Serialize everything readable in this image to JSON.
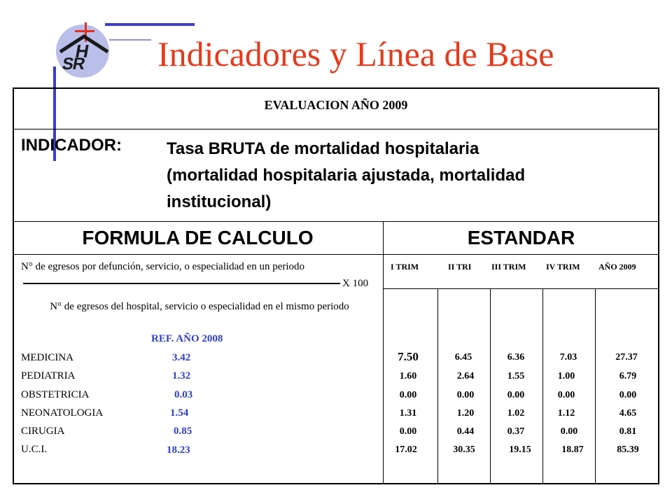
{
  "page": {
    "title": "Indicadores y Línea de Base"
  },
  "logo": {
    "letter_top": "H",
    "letters_bottom": "SR"
  },
  "evaluation": {
    "title": "EVALUACION AÑO 2009"
  },
  "indicator": {
    "label": "INDICADOR:",
    "line1": "Tasa BRUTA de mortalidad hospitalaria",
    "line2": "(mortalidad hospitalaria ajustada, mortalidad",
    "line3": "institucional)"
  },
  "columns": {
    "formula": "FORMULA DE CALCULO",
    "standard": "ESTANDAR"
  },
  "formula": {
    "numerator": "N° de egresos por defunción, servicio, o especialidad en un periodo",
    "multiplier": "X 100",
    "denominator": "N° de egresos del hospital, servicio o especialidad en el mismo periodo",
    "reference_label": "REF. AÑO 2008"
  },
  "standard_headers": [
    "I TRIM",
    "II TRI",
    "III TRIM",
    "IV TRIM",
    "AÑO 2009"
  ],
  "services": [
    {
      "name": "MEDICINA",
      "ref": "3.42",
      "values": [
        "7.50",
        "6.45",
        "6.36",
        "7.03",
        "27.37"
      ]
    },
    {
      "name": "PEDIATRIA",
      "ref": "1.32",
      "values": [
        "1.60",
        "2.64",
        "1.55",
        "1.00",
        "6.79"
      ]
    },
    {
      "name": "OBSTETRICIA",
      "ref": "0.03",
      "values": [
        "0.00",
        "0.00",
        "0.00",
        "0.00",
        "0.00"
      ]
    },
    {
      "name": "NEONATOLOGIA",
      "ref": "1.54",
      "values": [
        "1.31",
        "1.20",
        "1.02",
        "1.12",
        "4.65"
      ]
    },
    {
      "name": "CIRUGIA",
      "ref": "0.85",
      "values": [
        "0.00",
        "0.44",
        "0.37",
        "0.00",
        "0.81"
      ]
    },
    {
      "name": "U.C.I.",
      "ref": "18.23",
      "values": [
        "17.02",
        "30.35",
        "19.15",
        "18.87",
        "85.39"
      ]
    }
  ],
  "colors": {
    "title": "#e53a1c",
    "reference_values": "#2f3fc8",
    "decorative_lines": "#3b3bd6"
  }
}
